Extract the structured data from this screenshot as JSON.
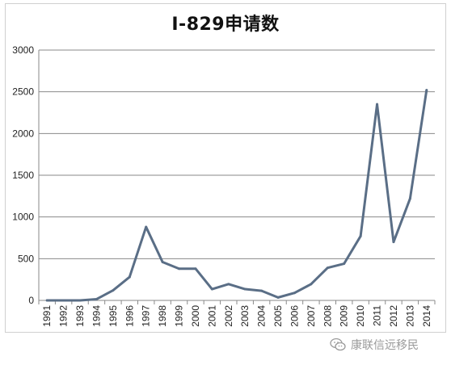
{
  "chart_data": {
    "type": "line",
    "title": "I-829申请数",
    "xlabel": "",
    "ylabel": "",
    "categories": [
      "1991",
      "1992",
      "1993",
      "1994",
      "1995",
      "1996",
      "1997",
      "1998",
      "1999",
      "2000",
      "2001",
      "2002",
      "2003",
      "2004",
      "2005",
      "2006",
      "2007",
      "2008",
      "2009",
      "2010",
      "2011",
      "2012",
      "2013",
      "2014"
    ],
    "series": [
      {
        "values": [
          0,
          0,
          0,
          15,
          120,
          280,
          880,
          460,
          380,
          380,
          135,
          195,
          135,
          115,
          35,
          90,
          195,
          390,
          440,
          770,
          2350,
          700,
          1220,
          2520
        ],
        "color": "#5a6e86"
      }
    ],
    "ylim": [
      0,
      3000
    ],
    "yticks": [
      0,
      500,
      1000,
      1500,
      2000,
      2500,
      3000
    ],
    "grid": true,
    "legend": "none",
    "gridline_color": "#8a8a8a"
  },
  "watermark": {
    "text": "康联信远移民",
    "icon": "wechat-icon"
  }
}
